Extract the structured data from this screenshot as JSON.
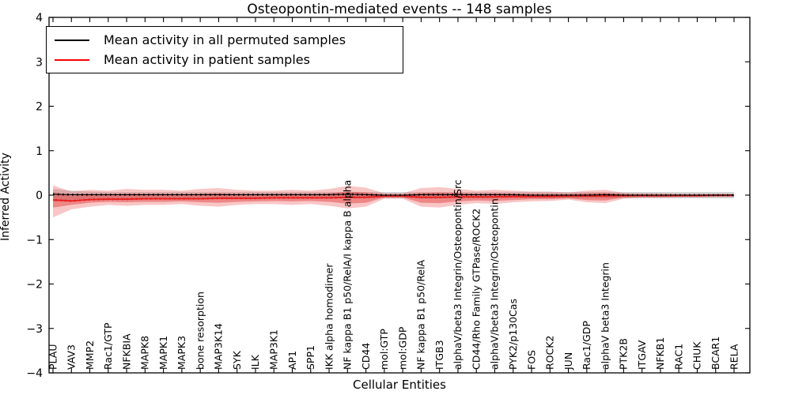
{
  "title": "Osteopontin-mediated events -- 148 samples",
  "legend": {
    "items": [
      {
        "label": "Mean activity in all permuted samples",
        "color": "#000000"
      },
      {
        "label": "Mean activity in patient samples",
        "color": "#ff0000"
      }
    ],
    "position": "upper left"
  },
  "chart_data": {
    "type": "line",
    "title": "Osteopontin-mediated events -- 148 samples",
    "xlabel": "Cellular Entities",
    "ylabel": "Inferred Activity",
    "ylim": [
      -4,
      4
    ],
    "yticks": [
      -4,
      -3,
      -2,
      -1,
      0,
      1,
      2,
      3,
      4
    ],
    "grid": false,
    "legend_position": "upper left",
    "categories": [
      "PLAU",
      "VAV3",
      "MMP2",
      "Rac1/GTP",
      "NFKBIA",
      "MAPK8",
      "MAPK1",
      "MAPK3",
      "bone resorption",
      "MAP3K14",
      "SYK",
      "ILK",
      "MAP3K1",
      "AP1",
      "SPP1",
      "IKK alpha homodimer",
      "NF kappa B1 p50/RelA/I kappa B alpha",
      "CD44",
      "mol:GTP",
      "mol:GDP",
      "NF kappa B1 p50/RelA",
      "ITGB3",
      "alphaV/beta3 Integrin/Osteopontin/Src",
      "CD44/Rho Family GTPase/ROCK2",
      "alphaV/beta3 Integrin/Osteopontin",
      "PYK2/p130Cas",
      "FOS",
      "ROCK2",
      "JUN",
      "Rac1/GDP",
      "alphaV beta3 Integrin",
      "PTK2B",
      "ITGAV",
      "NFKB1",
      "RAC1",
      "CHUK",
      "BCAR1",
      "RELA"
    ],
    "series": [
      {
        "name": "Mean activity in all permuted samples",
        "color": "#000000",
        "style": "solid-with-square-dots",
        "values": [
          0.02,
          0.01,
          0.01,
          0.01,
          0.01,
          0.01,
          0.01,
          0.01,
          0.01,
          0.01,
          0.01,
          0.01,
          0.01,
          0.01,
          0.01,
          0.01,
          0.02,
          0.01,
          0.0,
          0.0,
          0.01,
          0.01,
          0.01,
          0.01,
          0.01,
          0.01,
          0.0,
          0.0,
          0.0,
          0.0,
          0.01,
          0.0,
          0.0,
          0.0,
          0.0,
          0.0,
          0.0,
          0.0
        ]
      },
      {
        "name": "Mean activity in patient samples",
        "color": "#e81f1f",
        "style": "solid-with-square-dots",
        "values": [
          -0.11,
          -0.13,
          -0.1,
          -0.09,
          -0.09,
          -0.08,
          -0.08,
          -0.08,
          -0.08,
          -0.07,
          -0.07,
          -0.07,
          -0.06,
          -0.06,
          -0.06,
          -0.06,
          -0.05,
          -0.05,
          -0.02,
          -0.02,
          -0.05,
          -0.05,
          -0.04,
          -0.04,
          -0.04,
          -0.03,
          -0.03,
          -0.03,
          -0.02,
          -0.02,
          -0.02,
          -0.01,
          -0.01,
          -0.01,
          -0.01,
          -0.01,
          0.0,
          0.0
        ]
      }
    ],
    "bands": [
      {
        "name": "permuted-samples-spread",
        "color": "rgba(155,155,155,0.45)",
        "upper": [
          0.14,
          0.1,
          0.08,
          0.07,
          0.07,
          0.07,
          0.07,
          0.07,
          0.07,
          0.07,
          0.07,
          0.07,
          0.07,
          0.07,
          0.07,
          0.07,
          0.07,
          0.07,
          0.07,
          0.07,
          0.07,
          0.07,
          0.07,
          0.07,
          0.07,
          0.07,
          0.07,
          0.07,
          0.07,
          0.07,
          0.07,
          0.07,
          0.07,
          0.07,
          0.07,
          0.07,
          0.07,
          0.07
        ],
        "lower": [
          -0.14,
          -0.1,
          -0.08,
          -0.07,
          -0.07,
          -0.07,
          -0.07,
          -0.07,
          -0.07,
          -0.07,
          -0.07,
          -0.07,
          -0.07,
          -0.07,
          -0.07,
          -0.07,
          -0.07,
          -0.07,
          -0.07,
          -0.07,
          -0.07,
          -0.07,
          -0.07,
          -0.07,
          -0.07,
          -0.07,
          -0.07,
          -0.07,
          -0.07,
          -0.07,
          -0.07,
          -0.07,
          -0.07,
          -0.07,
          -0.07,
          -0.07,
          -0.07,
          -0.07
        ]
      },
      {
        "name": "patient-samples-spread-outer",
        "color": "rgba(236,82,82,0.33)",
        "upper": [
          0.22,
          0.08,
          0.12,
          0.1,
          0.14,
          0.12,
          0.12,
          0.1,
          0.14,
          0.16,
          0.12,
          0.1,
          0.1,
          0.12,
          0.1,
          0.14,
          0.21,
          0.17,
          0.04,
          0.04,
          0.16,
          0.18,
          0.14,
          0.1,
          0.12,
          0.1,
          0.08,
          0.08,
          0.06,
          0.1,
          0.12,
          0.05,
          0.04,
          0.04,
          0.03,
          0.03,
          0.02,
          0.02
        ],
        "lower": [
          -0.5,
          -0.32,
          -0.26,
          -0.22,
          -0.24,
          -0.22,
          -0.22,
          -0.2,
          -0.24,
          -0.26,
          -0.22,
          -0.2,
          -0.2,
          -0.22,
          -0.2,
          -0.24,
          -0.3,
          -0.26,
          -0.08,
          -0.08,
          -0.26,
          -0.28,
          -0.22,
          -0.18,
          -0.2,
          -0.16,
          -0.14,
          -0.13,
          -0.1,
          -0.16,
          -0.18,
          -0.08,
          -0.06,
          -0.06,
          -0.05,
          -0.05,
          -0.04,
          -0.04
        ]
      },
      {
        "name": "patient-samples-spread-inner",
        "color": "rgba(224,45,45,0.42)",
        "upper": [
          0.07,
          -0.01,
          0.02,
          0.01,
          0.03,
          0.02,
          0.02,
          0.01,
          0.03,
          0.04,
          0.02,
          0.02,
          0.02,
          0.03,
          0.02,
          0.04,
          0.08,
          0.06,
          0.01,
          0.01,
          0.05,
          0.06,
          0.05,
          0.03,
          0.04,
          0.03,
          0.02,
          0.02,
          0.02,
          0.04,
          0.05,
          0.02,
          0.01,
          0.01,
          0.01,
          0.01,
          0.01,
          0.01
        ],
        "lower": [
          -0.28,
          -0.22,
          -0.17,
          -0.15,
          -0.16,
          -0.15,
          -0.15,
          -0.14,
          -0.16,
          -0.17,
          -0.15,
          -0.14,
          -0.13,
          -0.14,
          -0.13,
          -0.15,
          -0.19,
          -0.17,
          -0.05,
          -0.05,
          -0.17,
          -0.18,
          -0.14,
          -0.12,
          -0.13,
          -0.11,
          -0.09,
          -0.09,
          -0.07,
          -0.11,
          -0.12,
          -0.05,
          -0.04,
          -0.04,
          -0.03,
          -0.03,
          -0.03,
          -0.03
        ]
      }
    ]
  }
}
